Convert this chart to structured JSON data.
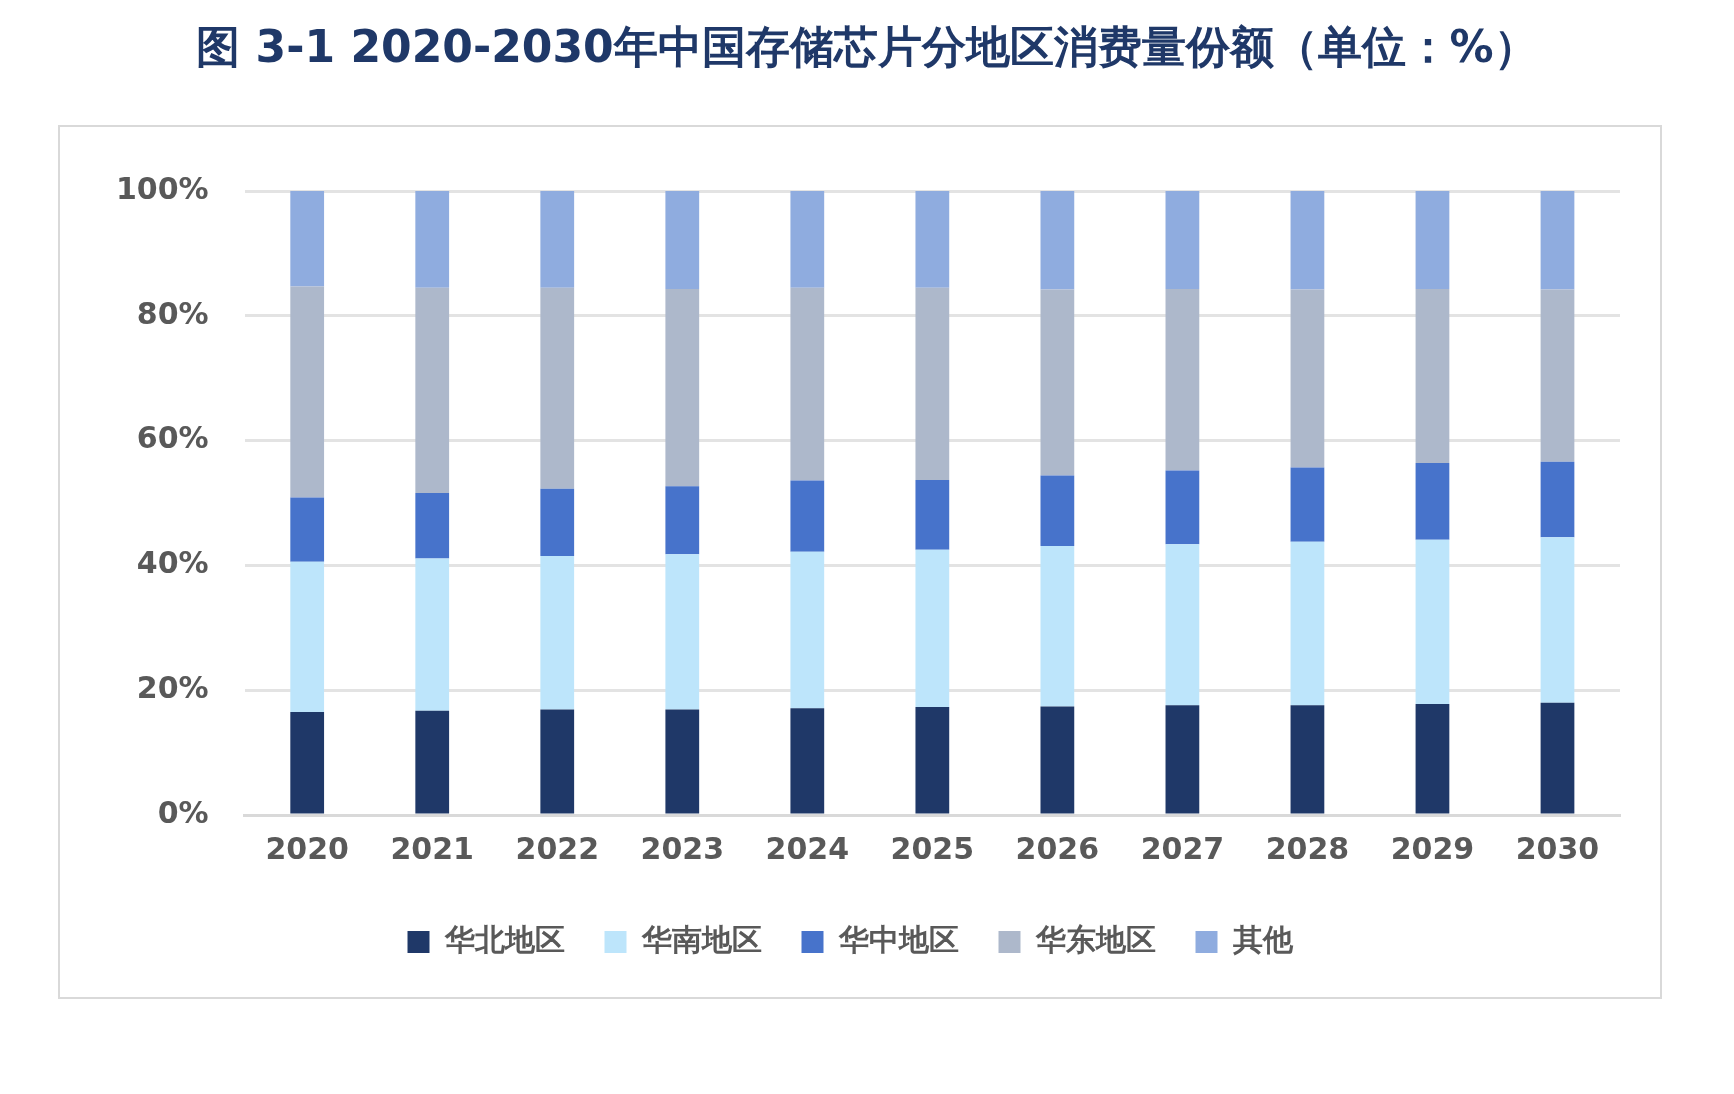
{
  "chart_data": {
    "type": "bar",
    "title": "图  3-1 2020-2030年中国存储芯片分地区消费量份额（单位：%）",
    "stacked": true,
    "categories": [
      "2020",
      "2021",
      "2022",
      "2023",
      "2024",
      "2025",
      "2026",
      "2027",
      "2028",
      "2029",
      "2030"
    ],
    "series": [
      {
        "name": "华北地区",
        "color": "#1f3868",
        "values": [
          16.5,
          16.7,
          16.9,
          16.9,
          17.1,
          17.3,
          17.4,
          17.6,
          17.6,
          17.8,
          18.0
        ]
      },
      {
        "name": "华南地区",
        "color": "#bde5fb",
        "values": [
          24.1,
          24.4,
          24.6,
          24.9,
          25.1,
          25.2,
          25.7,
          25.8,
          26.2,
          26.3,
          26.5
        ]
      },
      {
        "name": "华中地区",
        "color": "#4773cb",
        "values": [
          10.3,
          10.5,
          10.8,
          10.9,
          11.4,
          11.2,
          11.3,
          11.8,
          11.9,
          12.3,
          12.1
        ]
      },
      {
        "name": "华东地区",
        "color": "#adb8cb",
        "values": [
          33.8,
          32.9,
          32.2,
          31.6,
          30.9,
          30.8,
          29.8,
          29.1,
          28.5,
          27.9,
          27.6
        ]
      },
      {
        "name": "其他",
        "color": "#8facdf",
        "values": [
          15.3,
          15.5,
          15.5,
          15.7,
          15.5,
          15.5,
          15.8,
          15.7,
          15.8,
          15.7,
          15.8
        ]
      }
    ],
    "ylim": [
      0,
      100
    ],
    "yticks": [
      {
        "value": 0,
        "label": "0%"
      },
      {
        "value": 20,
        "label": "20%"
      },
      {
        "value": 40,
        "label": "40%"
      },
      {
        "value": 60,
        "label": "60%"
      },
      {
        "value": 80,
        "label": "80%"
      },
      {
        "value": 100,
        "label": "100%"
      }
    ],
    "grid": "y",
    "legend": "bottom"
  }
}
